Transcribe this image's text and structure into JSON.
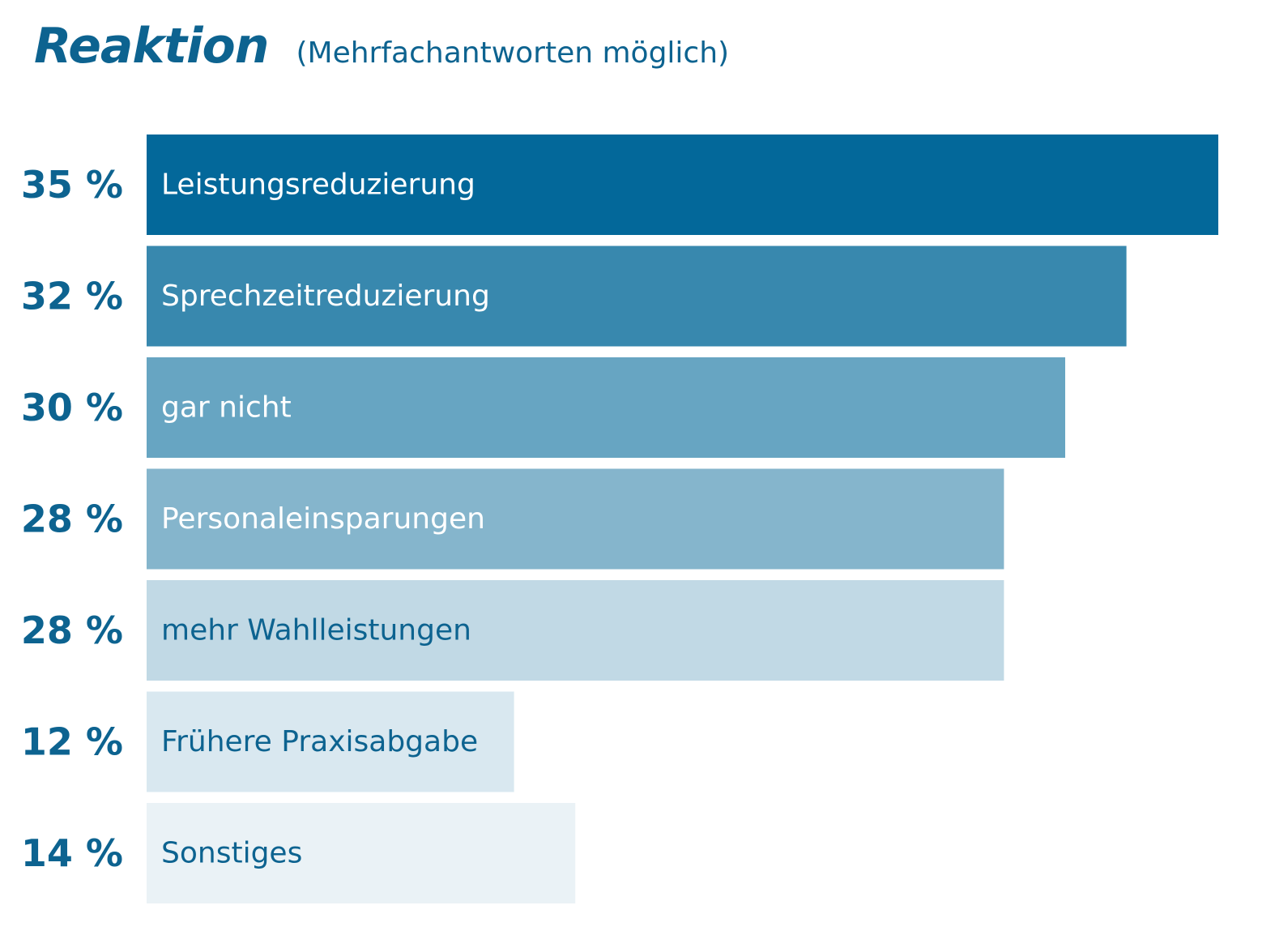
{
  "header": {
    "title": "Reaktion",
    "subtitle": "(Mehrfachantworten möglich)"
  },
  "chart_data": {
    "type": "bar",
    "orientation": "horizontal",
    "title": "Reaktion",
    "subtitle": "(Mehrfachantworten möglich)",
    "xlabel": "",
    "ylabel": "",
    "unit": "%",
    "grid": false,
    "categories": [
      "Leistungsreduzierung",
      "Sprechzeitreduzierung",
      "gar nicht",
      "Personaleinsparungen",
      "mehr Wahlleistungen",
      "Frühere Praxisabgabe",
      "Sonstiges"
    ],
    "values": [
      35,
      32,
      30,
      28,
      28,
      12,
      14
    ],
    "value_labels": [
      "35 %",
      "32 %",
      "30 %",
      "28 %",
      "28 %",
      "12 %",
      "14 %"
    ],
    "colors": [
      "#03689a",
      "#3888ae",
      "#67a5c2",
      "#85b5cc",
      "#c1d9e5",
      "#d9e8f0",
      "#eaf2f6"
    ],
    "label_colors": [
      "#ffffff",
      "#ffffff",
      "#ffffff",
      "#ffffff",
      "#0d6390",
      "#0d6390",
      "#0d6390"
    ],
    "value_color": "#0d6390"
  }
}
